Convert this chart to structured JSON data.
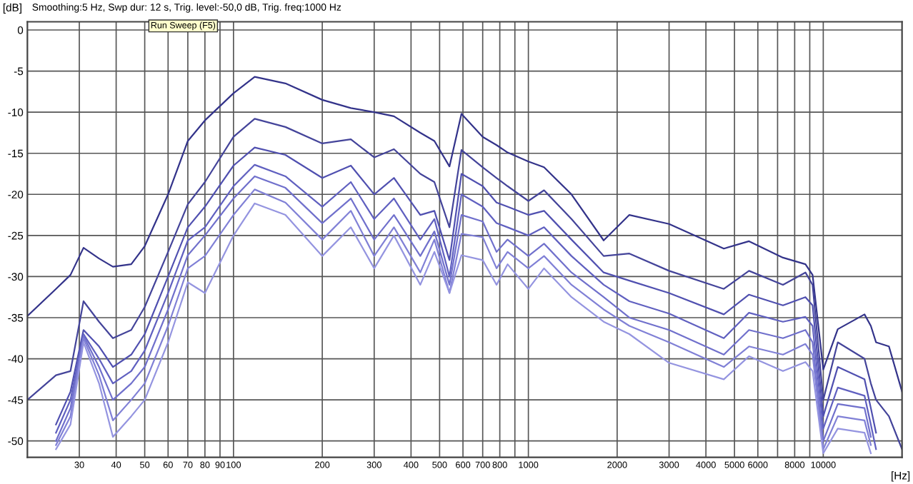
{
  "chart_data": {
    "type": "line",
    "title": "Smoothing:5 Hz, Swp dur: 12 s, Trig. level:-50,0 dB, Trig. freq:1000 Hz",
    "xlabel": "[Hz]",
    "ylabel": "[dB]",
    "annotations": [
      "Run Sweep (F5)"
    ],
    "log": "x",
    "grid": true,
    "marker": "none",
    "line_style": "solid",
    "xlim": [
      20,
      18500
    ],
    "ylim": [
      -52,
      1
    ],
    "xticks": [
      30,
      40,
      50,
      60,
      70,
      80,
      90,
      100,
      200,
      300,
      400,
      500,
      600,
      700,
      800,
      {
        "value": 900,
        "label": null
      },
      1000,
      2000,
      3000,
      4000,
      5000,
      6000,
      {
        "value": 7000,
        "label": null
      },
      8000,
      {
        "value": 9000,
        "label": null
      },
      10000
    ],
    "yticks": [
      0,
      -5,
      -10,
      -15,
      -20,
      -25,
      -30,
      -35,
      -40,
      -45,
      -50
    ],
    "x": [
      20,
      25,
      28,
      31,
      35,
      39,
      45,
      50,
      60,
      70,
      80,
      100,
      118,
      150,
      200,
      250,
      300,
      350,
      430,
      480,
      540,
      593,
      700,
      780,
      850,
      1000,
      1130,
      1400,
      1800,
      2200,
      3000,
      4600,
      5600,
      7300,
      8700,
      9200,
      10000,
      11200,
      13800,
      14500,
      15100,
      16700,
      18500
    ],
    "series": [
      {
        "color": "#33338a",
        "values": [
          -34.8,
          -31.5,
          -29.8,
          -26.5,
          -27.8,
          -28.8,
          -28.5,
          -26.3,
          -20,
          -13.5,
          -11,
          -7.7,
          -5.7,
          -6.5,
          -8.5,
          -9.5,
          -10,
          -10.5,
          -12.5,
          -13.5,
          -16.6,
          -10.2,
          -13,
          -14,
          -14.9,
          -16,
          -16.7,
          -20,
          -25.6,
          -22.5,
          -23.6,
          -26.6,
          -25.7,
          -27.7,
          -28.5,
          -29.8,
          -41.3,
          -36.4,
          -34.6,
          -36,
          -38,
          -38.5,
          -44
        ]
      },
      {
        "color": "#44449a",
        "values": [
          -45,
          -42,
          -41.5,
          -33,
          -35.5,
          -37.5,
          -36.5,
          -33.7,
          -27,
          -21.2,
          -18.5,
          -13,
          -10.8,
          -11.8,
          -13.8,
          -13.3,
          -15.5,
          -14.5,
          -17.5,
          -18.5,
          -24,
          -14.6,
          -16.7,
          -18,
          -19,
          -20.8,
          -19.5,
          -23,
          -27.5,
          -27.2,
          -29.3,
          -31.5,
          -29.3,
          -31,
          -29.5,
          -31,
          -45,
          -38,
          -40,
          -43,
          -45,
          -47,
          -51
        ]
      },
      {
        "color": "#5050b0",
        "values": [
          null,
          -48,
          -44,
          -36.5,
          -38.5,
          -41,
          -39.5,
          -37,
          -30,
          -24,
          -21.5,
          -16.5,
          -14.3,
          -15.2,
          -18,
          -16.5,
          -20,
          -18,
          -22.5,
          -22,
          -28,
          -17.5,
          -19,
          -21,
          -21.5,
          -22.5,
          -22,
          -25.5,
          -29.5,
          -30.5,
          -32,
          -34.6,
          -32.2,
          -33.5,
          -32.5,
          -33.5,
          -47,
          -41,
          -42.5,
          -46,
          -49,
          null,
          null
        ]
      },
      {
        "color": "#6060c0",
        "values": [
          null,
          -49,
          -45,
          -37,
          -40,
          -43,
          -41.5,
          -39,
          -32,
          -25.6,
          -24,
          -19,
          -16.4,
          -17.8,
          -21.5,
          -18.5,
          -23,
          -20.5,
          -25.5,
          -23,
          -30,
          -20,
          -21.5,
          -23.5,
          -24,
          -25,
          -24,
          -27.5,
          -31,
          -33,
          -34.5,
          -37.5,
          -34.4,
          -35.5,
          -34.9,
          -36,
          -48.5,
          -43.5,
          -44.5,
          -48,
          -51,
          null,
          null
        ]
      },
      {
        "color": "#7070cc",
        "values": [
          null,
          -50,
          -46,
          -37.2,
          -41,
          -45,
          -43,
          -41,
          -34,
          -27.4,
          -25,
          -20.5,
          -17.8,
          -19.2,
          -23.5,
          -20.5,
          -25.5,
          -22.5,
          -27.5,
          -24.5,
          -31,
          -22.5,
          -23.3,
          -27,
          -25.5,
          -27.5,
          -26,
          -29.5,
          -32.5,
          -35,
          -36.5,
          -39.5,
          -36.5,
          -37.5,
          -36.5,
          -38,
          -50,
          -45.5,
          -46,
          -49.5,
          null,
          null,
          null
        ]
      },
      {
        "color": "#8080d6",
        "values": [
          null,
          -50.5,
          -47,
          -37.5,
          -42,
          -47.5,
          -45,
          -43,
          -36,
          -29,
          -27.5,
          -22.5,
          -19.4,
          -21,
          -25.5,
          -22,
          -27.5,
          -24,
          -29.5,
          -25.5,
          -32,
          -24.8,
          -25.2,
          -29,
          -27,
          -29,
          -27.5,
          -31,
          -34,
          -36,
          -38,
          -41,
          -38.5,
          -39.5,
          -38.2,
          -39.5,
          -51,
          -47,
          -47.5,
          -50.5,
          null,
          null,
          null
        ]
      },
      {
        "color": "#9494e0",
        "values": [
          null,
          -51,
          -48,
          -38,
          -43,
          -49.5,
          -47,
          -45,
          -38,
          -30.7,
          -32,
          -25,
          -21.1,
          -22.5,
          -27.5,
          -24,
          -29,
          -25,
          -31,
          -27,
          -32,
          -27.4,
          -28,
          -31,
          -28.5,
          -31.5,
          -29,
          -32.5,
          -35.5,
          -37,
          -40.5,
          -42.5,
          -39.7,
          -41.5,
          -40.4,
          -41.5,
          -51.5,
          -48.5,
          -49,
          -51.5,
          null,
          null,
          null
        ]
      }
    ]
  }
}
